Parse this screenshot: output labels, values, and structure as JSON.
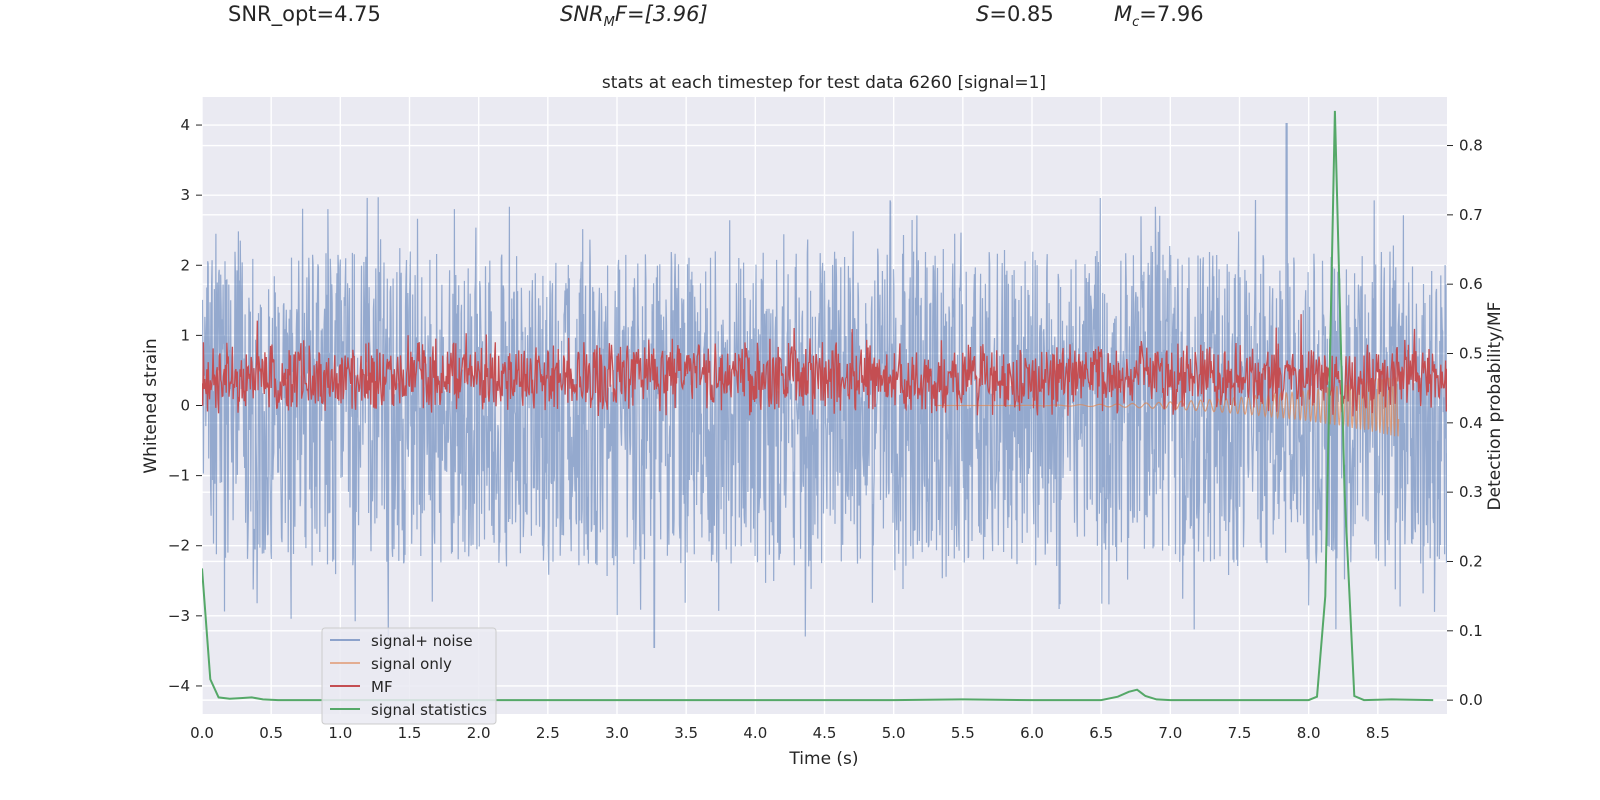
{
  "header": {
    "snr_opt": "SNR_opt=4.75",
    "snr_mf_sym": "SNR",
    "snr_mf_sub": "M",
    "snr_mf_tail": "F=[3.96]",
    "s_sym": "S",
    "s_val": "=0.85",
    "mc_sym": "M",
    "mc_sub": "c",
    "mc_val": "=7.96"
  },
  "chart_data": {
    "type": "line",
    "title": "stats at each timestep for test data 6260 [signal=1]",
    "xlabel": "Time (s)",
    "ylabel": "Whitened strain",
    "y2label": "Detection probability/MF",
    "xlim": [
      0,
      9.0
    ],
    "ylim": [
      -4.4,
      4.4
    ],
    "y2lim": [
      -0.02,
      0.87
    ],
    "x_ticks": [
      "0.0",
      "0.5",
      "1.0",
      "1.5",
      "2.0",
      "2.5",
      "3.0",
      "3.5",
      "4.0",
      "4.5",
      "5.0",
      "5.5",
      "6.0",
      "6.5",
      "7.0",
      "7.5",
      "8.0",
      "8.5"
    ],
    "y_ticks": [
      "4",
      "3",
      "2",
      "1",
      "0",
      "−1",
      "−2",
      "−3",
      "−4"
    ],
    "y2_ticks": [
      "0.8",
      "0.7",
      "0.6",
      "0.5",
      "0.4",
      "0.3",
      "0.2",
      "0.1",
      "0.0"
    ],
    "grid": true,
    "legend_position": "lower-left",
    "colors": {
      "noise": "#4c72b0",
      "signal": "#dd8452",
      "mf": "#c44e52",
      "stat": "#55a868",
      "plot_bg": "#eaeaf2"
    },
    "series": [
      {
        "name": "signal+ noise",
        "kind": "noise",
        "x_range": [
          0,
          9.0
        ],
        "envelope_upper": 2.2,
        "envelope_lower": -2.3,
        "peak_max": 4.02,
        "peak_min": -3.45
      },
      {
        "name": "signal only",
        "kind": "chirp",
        "x_range": [
          5.3,
          8.65
        ],
        "final_amplitude": 0.45
      },
      {
        "name": "MF",
        "kind": "mf",
        "x_range": [
          0,
          9.0
        ],
        "axis": "y2",
        "mean": 0.465,
        "spread": 0.04
      },
      {
        "name": "signal statistics",
        "kind": "stat",
        "axis": "y2",
        "x": [
          0.0,
          0.06,
          0.12,
          0.2,
          0.28,
          0.36,
          0.44,
          0.55,
          0.8,
          1.2,
          2.0,
          3.0,
          4.0,
          5.0,
          5.5,
          6.0,
          6.5,
          6.62,
          6.7,
          6.76,
          6.82,
          6.9,
          7.0,
          7.5,
          8.0,
          8.06,
          8.12,
          8.19,
          8.26,
          8.33,
          8.4,
          8.6,
          8.9
        ],
        "y": [
          0.19,
          0.03,
          0.004,
          0.002,
          0.003,
          0.004,
          0.001,
          0.0,
          0.0,
          0.0,
          0.0,
          0.0,
          0.0,
          0.0,
          0.001,
          0.0,
          0.0,
          0.005,
          0.012,
          0.015,
          0.006,
          0.001,
          0.0,
          0.0,
          0.0,
          0.005,
          0.15,
          0.85,
          0.3,
          0.006,
          0.0,
          0.001,
          0.0
        ]
      }
    ]
  }
}
